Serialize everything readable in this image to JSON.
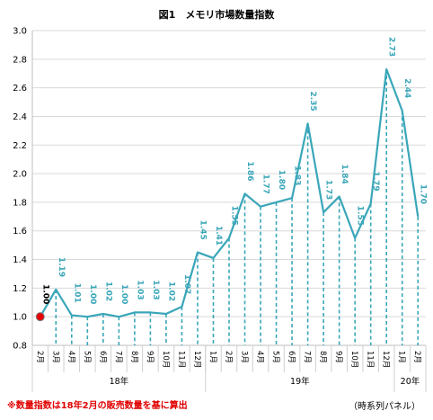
{
  "chart_data": {
    "type": "line",
    "title": "図1　メモリ市場数量指数",
    "categories": [
      "2月",
      "3月",
      "4月",
      "5月",
      "6月",
      "7月",
      "8月",
      "9月",
      "10月",
      "11月",
      "12月",
      "1月",
      "2月",
      "3月",
      "4月",
      "5月",
      "6月",
      "7月",
      "8月",
      "9月",
      "10月",
      "11月",
      "12月",
      "1月",
      "2月"
    ],
    "values": [
      1.0,
      1.19,
      1.01,
      1.0,
      1.02,
      1.0,
      1.03,
      1.03,
      1.02,
      1.07,
      1.45,
      1.41,
      1.55,
      1.86,
      1.77,
      1.8,
      1.83,
      2.35,
      1.73,
      1.84,
      1.55,
      1.79,
      2.73,
      2.44,
      1.7
    ],
    "groups": [
      {
        "label": "18年",
        "start": 0,
        "end": 10
      },
      {
        "label": "19年",
        "start": 11,
        "end": 22
      },
      {
        "label": "20年",
        "start": 23,
        "end": 24
      }
    ],
    "ylim": [
      0.8,
      3.0
    ],
    "yticks": [
      "0.8",
      "1.0",
      "1.2",
      "1.4",
      "1.6",
      "1.8",
      "2.0",
      "2.2",
      "2.4",
      "2.6",
      "2.8",
      "3.0"
    ],
    "grid": "horizontal",
    "colors": {
      "line": "#3aa6b9",
      "marker": "#e60000",
      "grid": "#d9d9d9"
    }
  },
  "footnote": "※数量指数は18年2月の販売数量を基に算出",
  "source_note": "（時系列パネル）"
}
